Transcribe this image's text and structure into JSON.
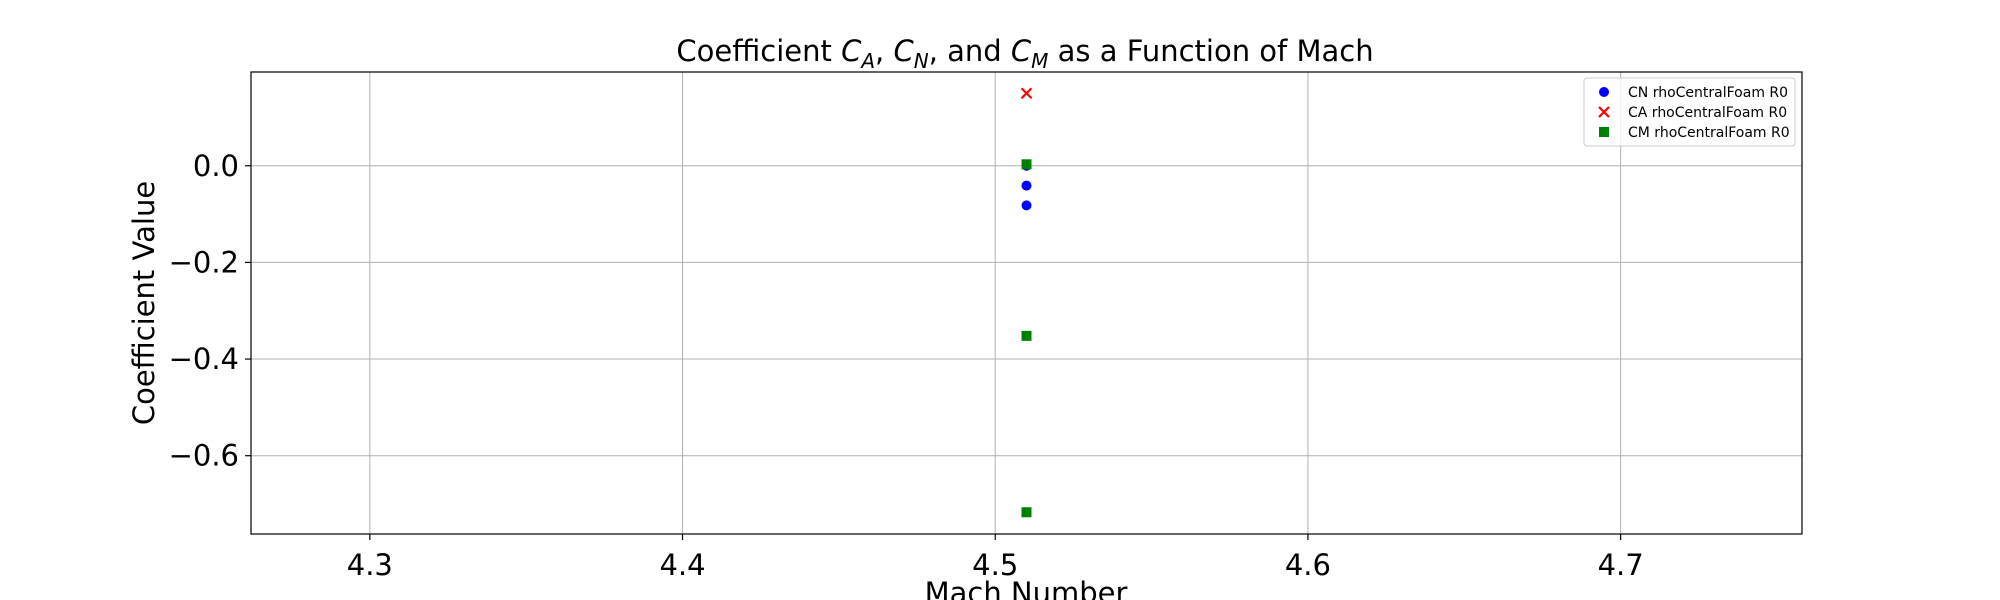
{
  "chart_data": {
    "type": "scatter",
    "title": {
      "prefix": "Coefficient ",
      "c_a": {
        "base": "C",
        "sub": "A"
      },
      "sep1": ", ",
      "c_n": {
        "base": "C",
        "sub": "N"
      },
      "sep2": ", and ",
      "c_m": {
        "base": "C",
        "sub": "M"
      },
      "suffix": " as a Function of Mach"
    },
    "xlabel": "Mach Number",
    "ylabel": "Coefficient Value",
    "xlim": [
      4.262,
      4.758
    ],
    "ylim": [
      -0.762,
      0.194
    ],
    "xticks": [
      4.3,
      4.4,
      4.5,
      4.6,
      4.7
    ],
    "xtick_labels": [
      "4.3",
      "4.4",
      "4.5",
      "4.6",
      "4.7"
    ],
    "yticks": [
      0.0,
      -0.2,
      -0.4,
      -0.6
    ],
    "ytick_labels": [
      "0.0",
      "−0.2",
      "−0.4",
      "−0.6"
    ],
    "grid": true,
    "legend_position": "top-right",
    "series": [
      {
        "name": "CN rhoCentralFoam R0",
        "marker": "circle",
        "color": "#0000ff",
        "points": [
          {
            "x": 4.51,
            "y": 0.0
          },
          {
            "x": 4.51,
            "y": -0.041
          },
          {
            "x": 4.51,
            "y": -0.082
          }
        ]
      },
      {
        "name": "CA rhoCentralFoam R0",
        "marker": "x",
        "color": "#ff0000",
        "points": [
          {
            "x": 4.51,
            "y": 0.15
          }
        ]
      },
      {
        "name": "CM rhoCentralFoam R0",
        "marker": "square",
        "color": "#008000",
        "points": [
          {
            "x": 4.51,
            "y": 0.003
          },
          {
            "x": 4.51,
            "y": -0.352
          },
          {
            "x": 4.51,
            "y": -0.717
          }
        ]
      }
    ]
  }
}
